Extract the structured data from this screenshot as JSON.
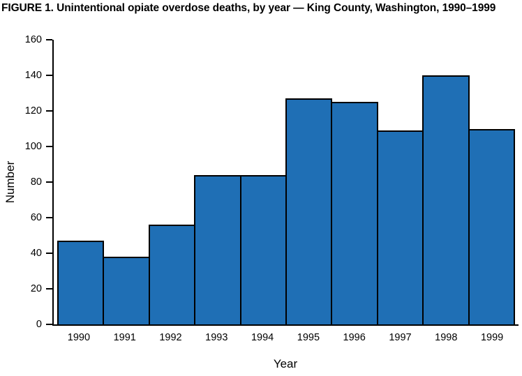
{
  "chart_data": {
    "type": "bar",
    "title": "FIGURE 1. Unintentional opiate overdose deaths, by year — King County, Washington, 1990–1999",
    "categories": [
      "1990",
      "1991",
      "1992",
      "1993",
      "1994",
      "1995",
      "1996",
      "1997",
      "1998",
      "1999"
    ],
    "values": [
      47,
      38,
      56,
      84,
      84,
      127,
      125,
      109,
      140,
      110
    ],
    "xlabel": "Year",
    "ylabel": "Number",
    "ylim": [
      0,
      160
    ],
    "ytick_step": 20,
    "grid": false,
    "legend_position": "none",
    "bar_color": "#1F6FB5",
    "bar_border_color": "#000000",
    "axis_color": "#000000"
  }
}
